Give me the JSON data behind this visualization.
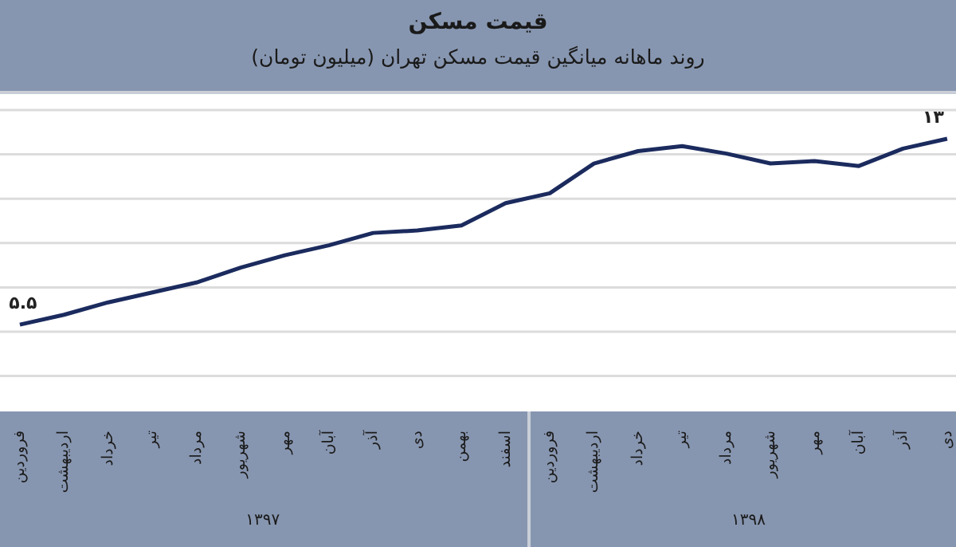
{
  "chart_data": {
    "type": "line",
    "title": "قیمت مسکن",
    "subtitle": "روند ماهانه میانگین قیمت مسکن تهران (میلیون تومان)",
    "categories": [
      "فروردین",
      "اردیبهشت",
      "خرداد",
      "تیر",
      "مرداد",
      "شهریور",
      "مهر",
      "آبان",
      "آذر",
      "دی",
      "بهمن",
      "اسفند",
      "فروردین",
      "اردیبهشت",
      "خرداد",
      "تیر",
      "مرداد",
      "شهریور",
      "مهر",
      "آبان",
      "آذر",
      "دی"
    ],
    "series": [
      {
        "color": "#1b2b5e",
        "values": [
          5.5,
          5.9,
          6.4,
          6.8,
          7.2,
          7.8,
          8.3,
          8.7,
          9.2,
          9.3,
          9.5,
          10.4,
          10.8,
          12.0,
          12.5,
          12.7,
          12.4,
          12.0,
          12.1,
          11.9,
          12.6,
          13.0
        ],
        "value_labels": [
          "۵.۵",
          null,
          null,
          null,
          null,
          null,
          null,
          null,
          null,
          null,
          null,
          null,
          null,
          null,
          null,
          null,
          null,
          null,
          null,
          null,
          null,
          "۱۳"
        ]
      }
    ],
    "annotations": [
      "۱۳۹۷",
      "۱۳۹۸"
    ],
    "grid": "y",
    "marker": "none",
    "line_style": "solid",
    "tick_labels": "x"
  }
}
